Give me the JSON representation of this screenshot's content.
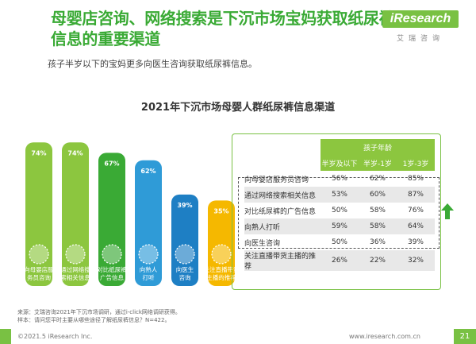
{
  "header": {
    "title": "母婴店咨询、网络搜索是下沉市场宝妈获取纸尿裤信息的重要渠道",
    "logo_text": "iResearch",
    "logo_sub": "艾瑞咨询"
  },
  "subtitle": "孩子半岁以下的宝妈更多向医生咨询获取纸尿裤信息。",
  "chart_data": {
    "type": "bar",
    "title": "2021年下沉市场母婴人群纸尿裤信息渠道",
    "categories": [
      "向母婴店服务员咨询",
      "通过网络搜索相关信息",
      "对比纸尿裤广告信息",
      "向熟人打听",
      "向医生咨询",
      "关注直播带货主播的推荐"
    ],
    "values": [
      74,
      74,
      67,
      62,
      39,
      35
    ],
    "unit": "%",
    "ylim": [
      0,
      80
    ],
    "bar_colors": [
      "#8cc63f",
      "#8cc63f",
      "#3aaa35",
      "#2f9bd7",
      "#1e7fc4",
      "#f5b800"
    ],
    "table": {
      "group_header": "孩子年龄",
      "columns": [
        "半岁及以下",
        "半岁-1岁",
        "1岁-3岁"
      ],
      "rows": [
        {
          "label": "向母婴店服务员咨询",
          "values": [
            "56%",
            "62%",
            "85%"
          ]
        },
        {
          "label": "通过网络搜索相关信息",
          "values": [
            "53%",
            "60%",
            "87%"
          ]
        },
        {
          "label": "对比纸尿裤的广告信息",
          "values": [
            "50%",
            "58%",
            "76%"
          ]
        },
        {
          "label": "向熟人打听",
          "values": [
            "59%",
            "58%",
            "64%"
          ]
        },
        {
          "label": "向医生咨询",
          "values": [
            "50%",
            "36%",
            "39%"
          ]
        },
        {
          "label": "关注直播带货主播的推荐",
          "values": [
            "26%",
            "22%",
            "32%"
          ]
        }
      ]
    }
  },
  "footer": {
    "source": "来源：艾瑞咨询2021年下沉市场调研，通过i-click网络调研获得。",
    "sample": "样本：请问您平时主要从哪些途径了解纸尿裤信息？N=422。",
    "copyright": "©2021.5 iResearch Inc.",
    "website": "www.iresearch.com.cn",
    "page": "21"
  }
}
